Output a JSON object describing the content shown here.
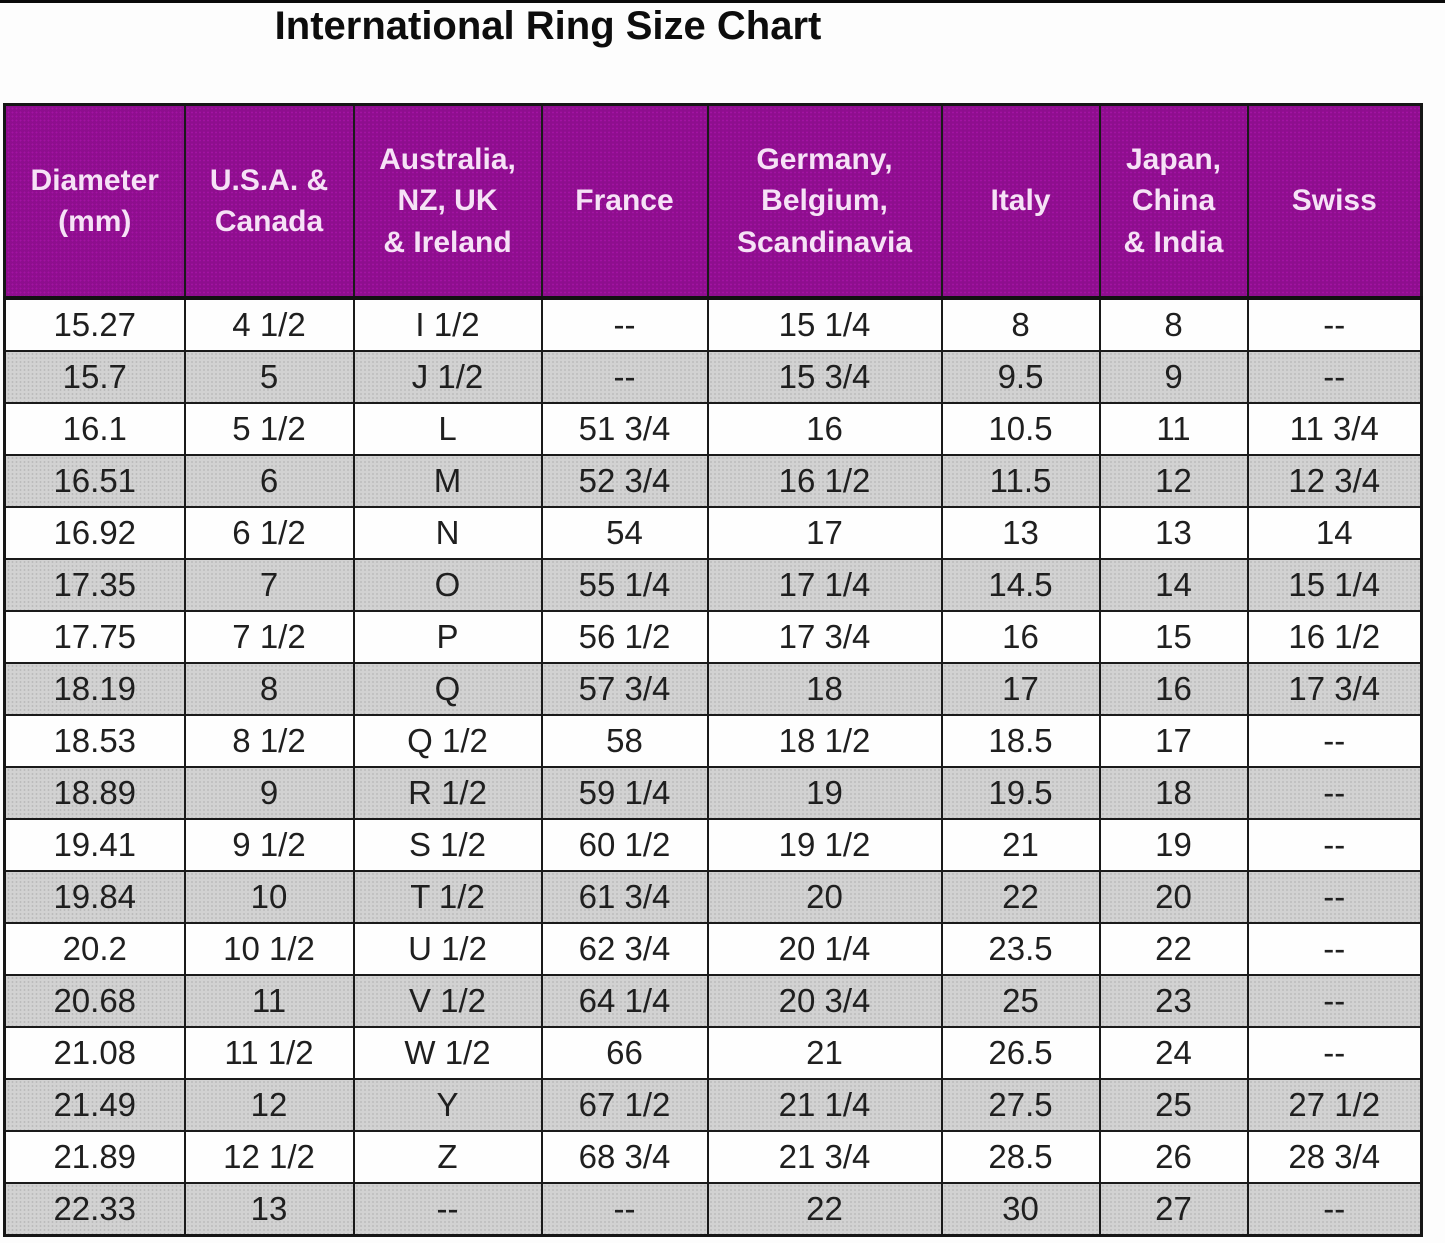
{
  "page_title": "International Ring Size Chart",
  "colors": {
    "header_bg": "#8e0e8e",
    "header_text": "#f6e2f6",
    "row_alt_bg": "#c9c9c9",
    "row_bg": "#fefefe",
    "border": "#161616",
    "title_text": "#0d0d0d"
  },
  "chart_data": {
    "type": "table",
    "title": "International Ring Size Chart",
    "layout": {
      "striped": true,
      "stripe_order": [
        "white",
        "gray"
      ],
      "header_style": "purple-with-white-text"
    },
    "columns": [
      {
        "label": "Diameter\n(mm)"
      },
      {
        "label": "U.S.A. &\nCanada"
      },
      {
        "label": "Australia,\nNZ, UK\n& Ireland"
      },
      {
        "label": "France"
      },
      {
        "label": "Germany,\nBelgium,\nScandinavia"
      },
      {
        "label": "Italy"
      },
      {
        "label": "Japan,\nChina\n& India"
      },
      {
        "label": "Swiss"
      }
    ],
    "rows": [
      [
        "15.27",
        "4 1/2",
        "I 1/2",
        "--",
        "15 1/4",
        "8",
        "8",
        "--"
      ],
      [
        "15.7",
        "5",
        "J 1/2",
        "--",
        "15 3/4",
        "9.5",
        "9",
        "--"
      ],
      [
        "16.1",
        "5 1/2",
        "L",
        "51 3/4",
        "16",
        "10.5",
        "11",
        "11 3/4"
      ],
      [
        "16.51",
        "6",
        "M",
        "52 3/4",
        "16 1/2",
        "11.5",
        "12",
        "12 3/4"
      ],
      [
        "16.92",
        "6 1/2",
        "N",
        "54",
        "17",
        "13",
        "13",
        "14"
      ],
      [
        "17.35",
        "7",
        "O",
        "55 1/4",
        "17 1/4",
        "14.5",
        "14",
        "15 1/4"
      ],
      [
        "17.75",
        "7 1/2",
        "P",
        "56 1/2",
        "17 3/4",
        "16",
        "15",
        "16 1/2"
      ],
      [
        "18.19",
        "8",
        "Q",
        "57 3/4",
        "18",
        "17",
        "16",
        "17 3/4"
      ],
      [
        "18.53",
        "8 1/2",
        "Q 1/2",
        "58",
        "18 1/2",
        "18.5",
        "17",
        "--"
      ],
      [
        "18.89",
        "9",
        "R 1/2",
        "59 1/4",
        "19",
        "19.5",
        "18",
        "--"
      ],
      [
        "19.41",
        "9 1/2",
        "S 1/2",
        "60 1/2",
        "19 1/2",
        "21",
        "19",
        "--"
      ],
      [
        "19.84",
        "10",
        "T 1/2",
        "61 3/4",
        "20",
        "22",
        "20",
        "--"
      ],
      [
        "20.2",
        "10 1/2",
        "U 1/2",
        "62 3/4",
        "20 1/4",
        "23.5",
        "22",
        "--"
      ],
      [
        "20.68",
        "11",
        "V 1/2",
        "64 1/4",
        "20 3/4",
        "25",
        "23",
        "--"
      ],
      [
        "21.08",
        "11 1/2",
        "W 1/2",
        "66",
        "21",
        "26.5",
        "24",
        "--"
      ],
      [
        "21.49",
        "12",
        "Y",
        "67 1/2",
        "21 1/4",
        "27.5",
        "25",
        "27 1/2"
      ],
      [
        "21.89",
        "12 1/2",
        "Z",
        "68 3/4",
        "21 3/4",
        "28.5",
        "26",
        "28 3/4"
      ],
      [
        "22.33",
        "13",
        "--",
        "--",
        "22",
        "30",
        "27",
        "--"
      ]
    ]
  }
}
